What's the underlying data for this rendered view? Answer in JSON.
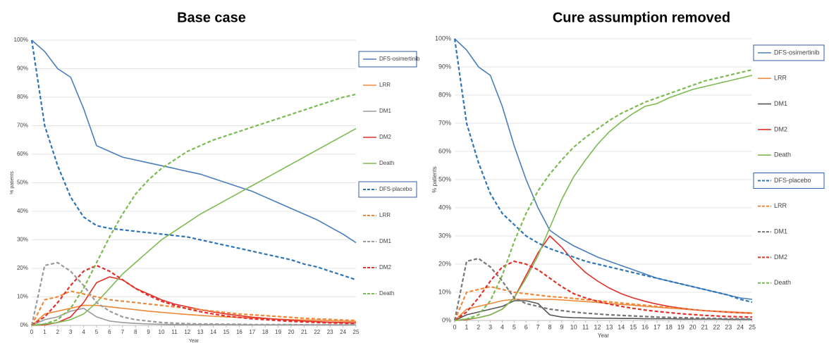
{
  "chart_data": [
    {
      "type": "line",
      "title": "Base case",
      "xlabel": "Year",
      "ylabel": "% patients",
      "x": [
        0,
        1,
        2,
        3,
        4,
        5,
        6,
        7,
        8,
        9,
        10,
        11,
        12,
        13,
        14,
        15,
        16,
        17,
        18,
        19,
        20,
        21,
        22,
        23,
        24,
        25
      ],
      "xlim": [
        0,
        25
      ],
      "xticks": [
        0,
        1,
        2,
        3,
        4,
        5,
        6,
        7,
        8,
        9,
        10,
        11,
        12,
        13,
        14,
        15,
        16,
        17,
        18,
        19,
        20,
        21,
        22,
        23,
        24,
        25
      ],
      "ylim": [
        0,
        100
      ],
      "yticks": [
        {
          "value": 0,
          "label": "0%"
        },
        {
          "value": 10,
          "label": "10%"
        },
        {
          "value": 20,
          "label": "20%"
        },
        {
          "value": 30,
          "label": "30%"
        },
        {
          "value": 40,
          "label": "40%"
        },
        {
          "value": 50,
          "label": "50%"
        },
        {
          "value": 60,
          "label": "60%"
        },
        {
          "value": 70,
          "label": "70%"
        },
        {
          "value": 80,
          "label": "80%"
        },
        {
          "value": 90,
          "label": "90%"
        },
        {
          "value": 100,
          "label": "100%"
        }
      ],
      "grid": true,
      "legend": "right",
      "series": [
        {
          "name": "DFS-osimertinib",
          "color": "#4a7ebb",
          "dash": false,
          "values": [
            100,
            96,
            90,
            87,
            76,
            63,
            61,
            59,
            58,
            57,
            56,
            55,
            54,
            53,
            51.5,
            50,
            48.5,
            47,
            45,
            43,
            41,
            39,
            37,
            34.5,
            32,
            29
          ]
        },
        {
          "name": "LRR",
          "color": "#f0883a",
          "dash": false,
          "values": [
            0,
            4,
            5,
            6,
            7,
            7,
            6.5,
            6,
            5.5,
            5,
            4.6,
            4.2,
            3.8,
            3.5,
            3.2,
            3,
            2.8,
            2.6,
            2.4,
            2.2,
            2,
            1.9,
            1.8,
            1.6,
            1.5,
            1.4
          ]
        },
        {
          "name": "DM1",
          "color": "#9a9a9a",
          "dash": false,
          "values": [
            0,
            2,
            3,
            5,
            6,
            3,
            1.5,
            1,
            0.7,
            0.5,
            0.4,
            0.3,
            0.3,
            0.3,
            0.3,
            0.3,
            0.2,
            0.2,
            0.2,
            0.2,
            0.2,
            0.2,
            0.2,
            0.2,
            0.2,
            0.2
          ]
        },
        {
          "name": "DM2",
          "color": "#e0302a",
          "dash": false,
          "values": [
            0,
            0.2,
            1,
            3,
            8,
            15,
            17,
            16,
            13,
            11,
            9,
            7.5,
            6.5,
            5.5,
            4.7,
            4,
            3.4,
            2.9,
            2.5,
            2.1,
            1.8,
            1.5,
            1.3,
            1.1,
            1,
            0.9
          ]
        },
        {
          "name": "Death",
          "color": "#7cba52",
          "dash": false,
          "values": [
            0,
            0.5,
            1,
            2,
            4,
            8,
            13,
            18,
            22,
            26,
            30,
            33,
            36,
            39,
            41.5,
            44,
            46.5,
            49,
            51.5,
            54,
            56.5,
            59,
            61.5,
            64,
            66.5,
            69
          ]
        },
        {
          "name": "DFS-placebo",
          "color": "#2e75b6",
          "dash": true,
          "values": [
            100,
            70,
            56,
            45,
            38,
            35,
            34,
            33.5,
            33,
            32.5,
            32,
            31.5,
            31,
            30,
            29,
            28,
            27,
            26,
            25,
            24,
            23,
            21.5,
            20.5,
            19,
            17.5,
            16
          ]
        },
        {
          "name": "LRR",
          "color": "#f0883a",
          "dash": true,
          "values": [
            0,
            9,
            10,
            12,
            11,
            10,
            9,
            8.5,
            8,
            7.5,
            7,
            6.5,
            6,
            5.5,
            5,
            4.5,
            4,
            3.7,
            3.4,
            3.1,
            2.8,
            2.5,
            2.3,
            2.1,
            1.9,
            1.7
          ]
        },
        {
          "name": "DM1",
          "color": "#9a9a9a",
          "dash": true,
          "values": [
            0,
            21,
            22,
            19,
            14,
            8,
            5,
            3,
            2,
            1.5,
            1,
            0.8,
            0.6,
            0.5,
            0.5,
            0.4,
            0.4,
            0.3,
            0.3,
            0.3,
            0.3,
            0.2,
            0.2,
            0.2,
            0.2,
            0.2
          ]
        },
        {
          "name": "DM2",
          "color": "#e0302a",
          "dash": true,
          "values": [
            0,
            3,
            8,
            14,
            19,
            21,
            19,
            16,
            13,
            10.5,
            8.5,
            7,
            5.8,
            4.8,
            4,
            3.3,
            2.8,
            2.3,
            2,
            1.7,
            1.4,
            1.2,
            1,
            0.9,
            0.8,
            0.7
          ]
        },
        {
          "name": "Death",
          "color": "#7cba52",
          "dash": true,
          "values": [
            0,
            0.5,
            2,
            6,
            13,
            22,
            31,
            39,
            46,
            51,
            55,
            58,
            61,
            63,
            65,
            66.5,
            68,
            69.5,
            71,
            72.5,
            74,
            75.5,
            77,
            78.5,
            80,
            81
          ]
        }
      ]
    },
    {
      "type": "line",
      "title": "Cure assumption removed",
      "xlabel": "Year",
      "ylabel": "% patients",
      "x": [
        0,
        1,
        2,
        3,
        4,
        5,
        6,
        7,
        8,
        9,
        10,
        11,
        12,
        13,
        14,
        15,
        16,
        17,
        18,
        19,
        20,
        21,
        22,
        23,
        24,
        25
      ],
      "xlim": [
        0,
        25
      ],
      "xticks": [
        0,
        1,
        2,
        3,
        4,
        5,
        6,
        7,
        8,
        9,
        10,
        11,
        12,
        13,
        14,
        15,
        16,
        17,
        18,
        19,
        20,
        21,
        22,
        23,
        24,
        25
      ],
      "ylim": [
        0,
        100
      ],
      "yticks": [
        {
          "value": 0,
          "label": "0%"
        },
        {
          "value": 10,
          "label": "10%"
        },
        {
          "value": 20,
          "label": "20%"
        },
        {
          "value": 30,
          "label": "30%"
        },
        {
          "value": 40,
          "label": "40%"
        },
        {
          "value": 50,
          "label": "50%"
        },
        {
          "value": 60,
          "label": "60%"
        },
        {
          "value": 70,
          "label": "70%"
        },
        {
          "value": 80,
          "label": "80%"
        },
        {
          "value": 90,
          "label": "90%"
        },
        {
          "value": 100,
          "label": "100%"
        }
      ],
      "grid": true,
      "legend": "right",
      "series": [
        {
          "name": "DFS-osimertinib",
          "color": "#4a7ebb",
          "dash": false,
          "values": [
            100,
            96,
            90,
            87,
            76,
            62,
            50,
            40,
            32,
            29,
            26.5,
            24.5,
            22.5,
            21,
            19.5,
            18,
            16.5,
            15,
            14,
            13,
            12,
            11,
            10,
            9,
            8,
            7.5
          ]
        },
        {
          "name": "LRR",
          "color": "#f0883a",
          "dash": false,
          "values": [
            0,
            4,
            5,
            6,
            7,
            7.5,
            7.5,
            7.5,
            7.5,
            7.3,
            7,
            6.7,
            6.4,
            6,
            5.7,
            5.4,
            5,
            4.7,
            4.4,
            4.1,
            3.8,
            3.5,
            3.3,
            3.1,
            2.9,
            2.7
          ]
        },
        {
          "name": "DM1",
          "color": "#555555",
          "dash": false,
          "values": [
            0,
            2,
            3,
            4,
            5,
            7,
            7,
            6,
            2,
            1.2,
            1,
            0.9,
            0.8,
            0.8,
            0.7,
            0.7,
            0.6,
            0.6,
            0.6,
            0.5,
            0.5,
            0.5,
            0.5,
            0.4,
            0.4,
            0.4
          ]
        },
        {
          "name": "DM2",
          "color": "#e0302a",
          "dash": false,
          "values": [
            0,
            0.3,
            1,
            2,
            4,
            8,
            16,
            24,
            30,
            26,
            21,
            17,
            14,
            11.5,
            9.5,
            8,
            6.8,
            5.8,
            5,
            4.4,
            3.9,
            3.5,
            3.2,
            2.9,
            2.7,
            2.5
          ]
        },
        {
          "name": "Death",
          "color": "#7cba52",
          "dash": false,
          "values": [
            0,
            0.5,
            1,
            2,
            4,
            8,
            15,
            23,
            33,
            43,
            51,
            57,
            62.5,
            67,
            70.5,
            73.5,
            76,
            77,
            79,
            80.5,
            82,
            83,
            84,
            85,
            86,
            87
          ]
        },
        {
          "name": "DFS-placebo",
          "color": "#2e75b6",
          "dash": true,
          "values": [
            100,
            70,
            56,
            45,
            38,
            34,
            30,
            27.5,
            25.5,
            24,
            22.5,
            21,
            20,
            19,
            18,
            17,
            16,
            15,
            14,
            13,
            12,
            11,
            10,
            9,
            7.5,
            6.5
          ]
        },
        {
          "name": "LRR",
          "color": "#f0883a",
          "dash": true,
          "values": [
            0,
            10,
            11,
            12,
            11,
            10,
            9.5,
            9,
            8.5,
            8.2,
            7.8,
            7.4,
            7,
            6.6,
            6.2,
            5.8,
            5.4,
            5,
            4.6,
            4.2,
            3.8,
            3.5,
            3.2,
            3,
            2.8,
            2.6
          ]
        },
        {
          "name": "DM1",
          "color": "#777777",
          "dash": true,
          "values": [
            0,
            21,
            22,
            19,
            14,
            8,
            6,
            5,
            4,
            3.5,
            3,
            2.6,
            2.3,
            2,
            1.8,
            1.6,
            1.4,
            1.2,
            1.1,
            1,
            0.9,
            0.8,
            0.7,
            0.6,
            0.6,
            0.5
          ]
        },
        {
          "name": "DM2",
          "color": "#e0302a",
          "dash": true,
          "values": [
            0,
            3,
            8,
            14,
            19,
            21,
            20,
            18,
            15,
            12,
            9.5,
            8,
            6.8,
            5.8,
            5,
            4.3,
            3.7,
            3.2,
            2.8,
            2.4,
            2.1,
            1.8,
            1.6,
            1.4,
            1.3,
            1.2
          ]
        },
        {
          "name": "Death",
          "color": "#7cba52",
          "dash": true,
          "values": [
            0,
            0.5,
            2,
            7,
            16,
            28,
            38,
            46,
            52,
            57,
            61.5,
            65,
            68,
            71,
            73.5,
            75.5,
            77.5,
            79,
            80.5,
            82,
            83.5,
            85,
            86,
            87,
            88,
            89
          ]
        }
      ]
    }
  ]
}
